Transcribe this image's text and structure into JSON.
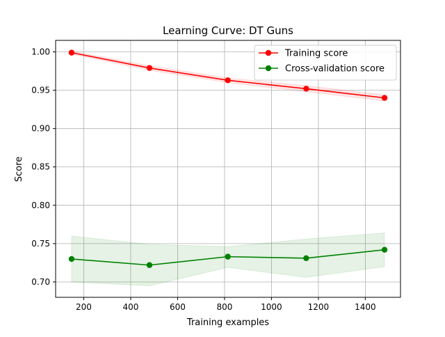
{
  "chart_data": {
    "type": "line",
    "title": "Learning Curve: DT Guns",
    "xlabel": "Training examples",
    "ylabel": "Score",
    "xlim": [
      80,
      1550
    ],
    "ylim": [
      0.68,
      1.015
    ],
    "grid": true,
    "legend_position": "top-right",
    "x_ticks": [
      200,
      400,
      600,
      800,
      1000,
      1200,
      1400
    ],
    "y_ticks": [
      0.7,
      0.75,
      0.8,
      0.85,
      0.9,
      0.95,
      1.0
    ],
    "x_tick_labels": [
      "200",
      "400",
      "600",
      "800",
      "1000",
      "1200",
      "1400"
    ],
    "y_tick_labels": [
      "0.70",
      "0.75",
      "0.80",
      "0.85",
      "0.90",
      "0.95",
      "1.00"
    ],
    "x": [
      148,
      480,
      814,
      1148,
      1482
    ],
    "series": [
      {
        "name": "Training score",
        "color": "#ff0000",
        "values": [
          0.999,
          0.979,
          0.963,
          0.952,
          0.94
        ],
        "band_low": [
          0.997,
          0.976,
          0.96,
          0.948,
          0.936
        ],
        "band_high": [
          1.001,
          0.982,
          0.966,
          0.956,
          0.944
        ]
      },
      {
        "name": "Cross-validation score",
        "color": "#008000",
        "values": [
          0.73,
          0.722,
          0.733,
          0.731,
          0.742
        ],
        "band_low": [
          0.7,
          0.695,
          0.719,
          0.706,
          0.72
        ],
        "band_high": [
          0.76,
          0.749,
          0.746,
          0.756,
          0.764
        ]
      }
    ]
  }
}
